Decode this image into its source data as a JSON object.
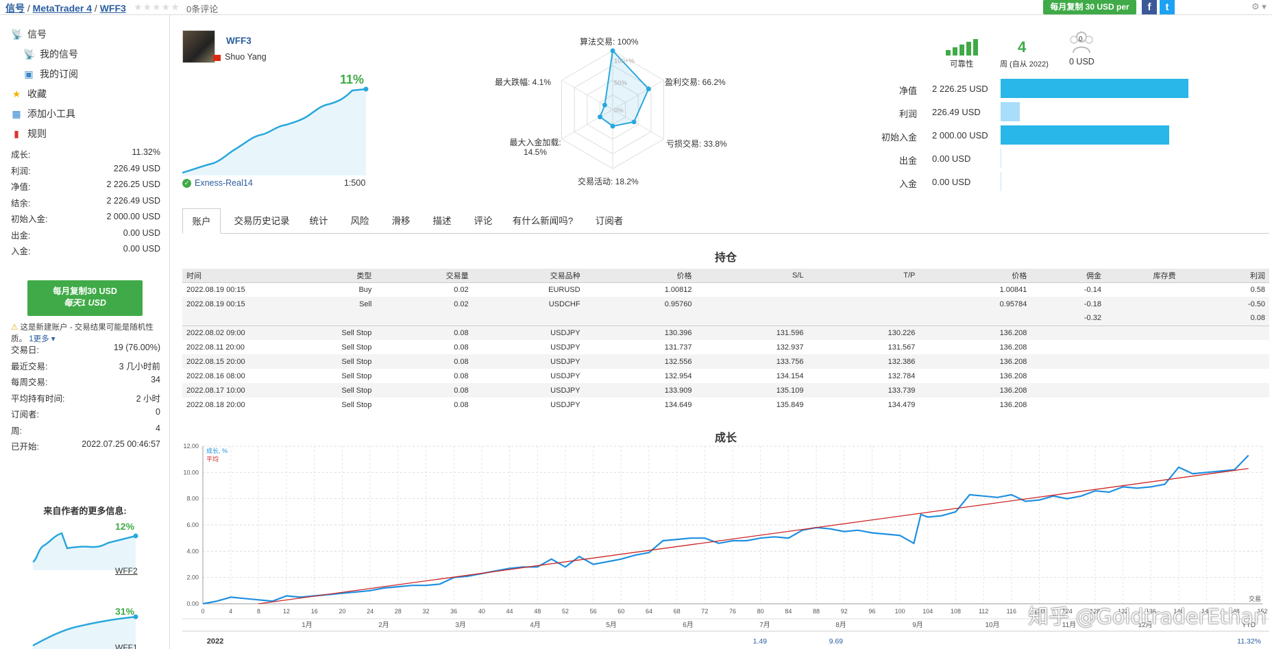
{
  "breadcrumb": {
    "a": "信号",
    "b": "MetaTrader 4",
    "c": "WFF3",
    "sep": " / "
  },
  "rating": {
    "stars": "★★★★★",
    "reviews": "0条评论"
  },
  "top": {
    "copy_btn": "每月复制 30 USD per",
    "fb": "f",
    "tw": "t",
    "gear": "⚙ ▾"
  },
  "nav": {
    "signals": "信号",
    "my_signals": "我的信号",
    "my_subs": "我的订阅",
    "favorites": "收藏",
    "widget": "添加小工具",
    "rules": "规则"
  },
  "stats_top": [
    {
      "k": "成长:",
      "v": "11.32%"
    },
    {
      "k": "利润:",
      "v": "226.49 USD"
    },
    {
      "k": "净值:",
      "v": "2 226.25 USD"
    },
    {
      "k": "结余:",
      "v": "2 226.49 USD"
    },
    {
      "k": "初始入金:",
      "v": "2 000.00 USD"
    },
    {
      "k": "出金:",
      "v": "0.00 USD"
    },
    {
      "k": "入金:",
      "v": "0.00 USD"
    }
  ],
  "subscribe": {
    "line1": "每月复制30 USD",
    "line2": "每天1 USD"
  },
  "note": {
    "text": "这是新建账户 - 交易结果可能是随机性质。",
    "more": "1更多 ▾"
  },
  "stats_bottom": [
    {
      "k": "交易日:",
      "v": "19 (76.00%)"
    },
    {
      "k": "最近交易:",
      "v": "3 几小时前"
    },
    {
      "k": "每周交易:",
      "v": "34"
    },
    {
      "k": "平均持有时间:",
      "v": "2 小时"
    },
    {
      "k": "订阅者:",
      "v": "0"
    },
    {
      "k": "周:",
      "v": "4"
    },
    {
      "k": "已开始:",
      "v": "2022.07.25 00:46:57"
    }
  ],
  "more_info": {
    "title": "来自作者的更多信息:",
    "items": [
      {
        "name": "WFF2",
        "growth": "12%"
      },
      {
        "name": "WFF1",
        "growth": "31%"
      }
    ]
  },
  "signal": {
    "name": "WFF3",
    "author": "Shuo Yang",
    "growth": "11%",
    "broker": "Exness-Real14",
    "leverage": "1:500"
  },
  "radar": {
    "algo": "算法交易: 100%",
    "profit": "盈利交易: 66.2%",
    "loss": "亏损交易: 33.8%",
    "activity": "交易活动: 18.2%",
    "load_a": "最大入金加载:",
    "load_b": "14.5%",
    "drawdown": "最大跌幅: 4.1%",
    "r100": "100+%",
    "r50": "50%",
    "r0": "0%"
  },
  "radar_values": {
    "algo": 100,
    "profit": 66.2,
    "loss": 33.8,
    "activity": 18.2,
    "load": 14.5,
    "drawdown": 4.1
  },
  "reliability": {
    "label": "可靠性",
    "weeks": "4",
    "weeks_label": "周 (自从 2022)",
    "subs_count": "0",
    "subs_value": "0 USD",
    "level": 5,
    "level_max": 5
  },
  "balances": [
    {
      "label": "净值",
      "value": "2 226.25 USD",
      "amount": 2226.25
    },
    {
      "label": "利润",
      "value": "226.49 USD",
      "amount": 226.49
    },
    {
      "label": "初始入金",
      "value": "2 000.00 USD",
      "amount": 2000.0
    },
    {
      "label": "出金",
      "value": "0.00 USD",
      "amount": 0
    },
    {
      "label": "入金",
      "value": "0.00 USD",
      "amount": 0
    }
  ],
  "tabs": [
    "账户",
    "交易历史记录",
    "统计",
    "风险",
    "滑移",
    "描述",
    "评论",
    "有什么新闻吗?",
    "订阅者"
  ],
  "positions": {
    "title": "持仓",
    "headers": [
      "时间",
      "类型",
      "交易量",
      "交易品种",
      "价格",
      "S/L",
      "T/P",
      "价格",
      "佣金",
      "库存费",
      "利润"
    ],
    "rows": [
      [
        "2022.08.19 00:15",
        "Buy",
        "0.02",
        "EURUSD",
        "1.00812",
        "",
        "",
        "1.00841",
        "-0.14",
        "",
        "0.58"
      ],
      [
        "2022.08.19 00:15",
        "Sell",
        "0.02",
        "USDCHF",
        "0.95760",
        "",
        "",
        "0.95784",
        "-0.18",
        "",
        "-0.50"
      ],
      [
        "",
        "",
        "",
        "",
        "",
        "",
        "",
        "",
        "-0.32",
        "",
        "0.08"
      ],
      [
        "2022.08.02 09:00",
        "Sell Stop",
        "0.08",
        "USDJPY",
        "130.396",
        "131.596",
        "130.226",
        "136.208",
        "",
        "",
        ""
      ],
      [
        "2022.08.11 20:00",
        "Sell Stop",
        "0.08",
        "USDJPY",
        "131.737",
        "132.937",
        "131.567",
        "136.208",
        "",
        "",
        ""
      ],
      [
        "2022.08.15 20:00",
        "Sell Stop",
        "0.08",
        "USDJPY",
        "132.556",
        "133.756",
        "132.386",
        "136.208",
        "",
        "",
        ""
      ],
      [
        "2022.08.16 08:00",
        "Sell Stop",
        "0.08",
        "USDJPY",
        "132.954",
        "134.154",
        "132.784",
        "136.208",
        "",
        "",
        ""
      ],
      [
        "2022.08.17 10:00",
        "Sell Stop",
        "0.08",
        "USDJPY",
        "133.909",
        "135.109",
        "133.739",
        "136.208",
        "",
        "",
        ""
      ],
      [
        "2022.08.18 20:00",
        "Sell Stop",
        "0.08",
        "USDJPY",
        "134.649",
        "135.849",
        "134.479",
        "136.208",
        "",
        "",
        ""
      ]
    ]
  },
  "growth_footer": {
    "year": "2022",
    "jul": "1.49",
    "aug": "9.69",
    "ytd": "11.32%"
  },
  "watermark": "知乎 @GoldtraderEthan",
  "chart_data": {
    "type": "line",
    "title": "成长",
    "legend": [
      "成长, %",
      "平均"
    ],
    "xlabel": "交易",
    "ylim": [
      0,
      12
    ],
    "yticks": [
      "0.00",
      "2.00",
      "4.00",
      "6.00",
      "8.00",
      "10.00",
      "12.00"
    ],
    "xticks": [
      0,
      4,
      8,
      12,
      16,
      20,
      24,
      28,
      32,
      36,
      40,
      44,
      48,
      52,
      56,
      60,
      64,
      68,
      72,
      76,
      80,
      84,
      88,
      92,
      96,
      100,
      104,
      108,
      112,
      116,
      120,
      124,
      128,
      132,
      136,
      140,
      144,
      148,
      152
    ],
    "xlim": [
      0,
      152
    ],
    "months": [
      "1月",
      "2月",
      "3月",
      "4月",
      "5月",
      "6月",
      "7月",
      "8月",
      "9月",
      "10月",
      "11月",
      "12月",
      "YTD"
    ],
    "colors": {
      "growth": "#1e8fe0",
      "average": "#cc2222"
    },
    "series": [
      {
        "name": "成长, %",
        "x": [
          0,
          2,
          4,
          6,
          8,
          10,
          12,
          14,
          16,
          18,
          20,
          22,
          24,
          26,
          28,
          30,
          32,
          34,
          36,
          38,
          40,
          42,
          44,
          46,
          48,
          50,
          52,
          54,
          56,
          58,
          60,
          62,
          64,
          66,
          68,
          70,
          72,
          74,
          76,
          78,
          80,
          82,
          84,
          86,
          88,
          90,
          92,
          94,
          96,
          98,
          100,
          102,
          103,
          104,
          106,
          108,
          110,
          112,
          114,
          116,
          118,
          120,
          122,
          124,
          126,
          128,
          130,
          132,
          134,
          136,
          138,
          140,
          142,
          144,
          146,
          148,
          150
        ],
        "values": [
          0.0,
          0.2,
          0.5,
          0.4,
          0.3,
          0.2,
          0.6,
          0.5,
          0.6,
          0.7,
          0.8,
          0.9,
          1.0,
          1.2,
          1.3,
          1.4,
          1.4,
          1.5,
          2.0,
          2.1,
          2.3,
          2.5,
          2.7,
          2.8,
          2.8,
          3.4,
          2.8,
          3.6,
          3.0,
          3.2,
          3.4,
          3.7,
          3.9,
          4.8,
          4.9,
          5.0,
          5.0,
          4.6,
          4.8,
          4.8,
          5.0,
          5.1,
          5.0,
          5.6,
          5.8,
          5.7,
          5.5,
          5.6,
          5.4,
          5.3,
          5.2,
          4.6,
          6.8,
          6.6,
          6.7,
          7.0,
          8.3,
          8.2,
          8.1,
          8.3,
          7.8,
          7.9,
          8.2,
          8.0,
          8.2,
          8.6,
          8.5,
          8.9,
          8.8,
          8.9,
          9.1,
          10.4,
          9.9,
          10.0,
          10.1,
          10.2,
          11.3
        ]
      },
      {
        "name": "平均",
        "x": [
          8,
          150
        ],
        "values": [
          0.0,
          10.3
        ]
      }
    ]
  }
}
